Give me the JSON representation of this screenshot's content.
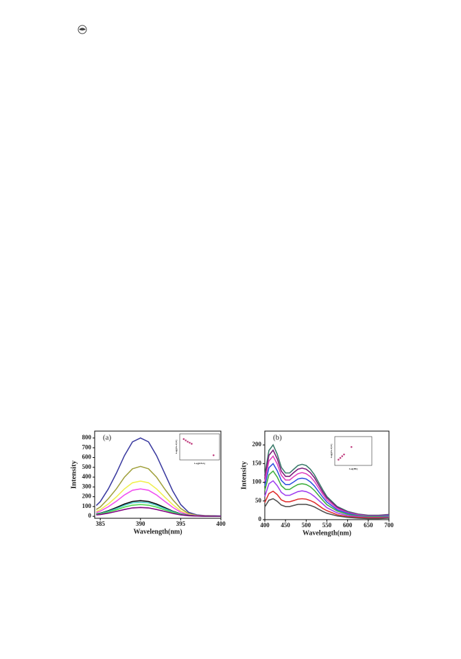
{
  "chart_data": [
    {
      "type": "line",
      "title": "(a)",
      "xlabel": "Wavelength(nm)",
      "ylabel": "Intensity",
      "x": [
        384.5,
        385,
        386,
        387,
        388,
        389,
        390,
        391,
        392,
        393,
        394,
        395,
        396,
        397,
        398,
        400
      ],
      "xlim": [
        384.3,
        400
      ],
      "ylim": [
        -20,
        870
      ],
      "xticks": [
        385,
        390,
        395,
        400
      ],
      "yticks": [
        0,
        100,
        200,
        300,
        400,
        500,
        600,
        700,
        800
      ],
      "series": [
        {
          "color": "#3c3ca0",
          "values": [
            110,
            150,
            280,
            440,
            620,
            760,
            800,
            760,
            620,
            440,
            260,
            120,
            40,
            15,
            8,
            3
          ]
        },
        {
          "color": "#a0a03c",
          "values": [
            70,
            95,
            180,
            280,
            400,
            485,
            510,
            485,
            400,
            280,
            170,
            80,
            28,
            10,
            5,
            2
          ]
        },
        {
          "color": "#f0f050",
          "values": [
            50,
            68,
            126,
            198,
            280,
            342,
            360,
            342,
            280,
            198,
            120,
            55,
            20,
            8,
            4,
            2
          ]
        },
        {
          "color": "#f050f0",
          "values": [
            40,
            53,
            98,
            154,
            218,
            266,
            280,
            266,
            218,
            154,
            92,
            42,
            15,
            6,
            3,
            1
          ]
        },
        {
          "color": "#000000",
          "values": [
            25,
            32,
            57,
            89,
            125,
            152,
            160,
            152,
            125,
            89,
            53,
            25,
            10,
            4,
            2,
            1
          ]
        },
        {
          "color": "#40c0c0",
          "values": [
            22,
            28,
            51,
            80,
            113,
            138,
            145,
            138,
            113,
            80,
            48,
            22,
            9,
            4,
            2,
            1
          ]
        },
        {
          "color": "#4ad84a",
          "values": [
            18,
            24,
            43,
            66,
            94,
            114,
            120,
            114,
            94,
            66,
            40,
            18,
            7,
            3,
            2,
            1
          ]
        },
        {
          "color": "#800080",
          "values": [
            14,
            18,
            32,
            50,
            70,
            86,
            90,
            86,
            70,
            50,
            30,
            14,
            6,
            3,
            2,
            1
          ]
        }
      ]
    },
    {
      "type": "scatter",
      "xlabel": "Log[DNA]",
      "ylabel": "Log[(Fo-F)/F]",
      "color": "#c04080",
      "x": [
        1,
        1.5,
        2,
        2.5,
        3,
        8.5
      ],
      "values": [
        8,
        7.5,
        7,
        6.6,
        6.2,
        1.8
      ],
      "xlim": [
        0,
        10
      ],
      "ylim": [
        0,
        10
      ]
    },
    {
      "type": "line",
      "title": "(b)",
      "xlabel": "Wavelength(nm)",
      "ylabel": "Intensity",
      "x": [
        400,
        410,
        420,
        430,
        440,
        450,
        460,
        470,
        480,
        490,
        500,
        510,
        520,
        530,
        540,
        550,
        575,
        600,
        625,
        650,
        675,
        700
      ],
      "xlim": [
        400,
        700
      ],
      "ylim": [
        0,
        237
      ],
      "xticks": [
        400,
        450,
        500,
        550,
        600,
        650,
        700
      ],
      "yticks": [
        0,
        50,
        100,
        150,
        200
      ],
      "series": [
        {
          "color": "#3a7a6a",
          "values": [
            120,
            185,
            200,
            175,
            140,
            125,
            125,
            135,
            145,
            148,
            145,
            135,
            120,
            100,
            80,
            62,
            35,
            22,
            15,
            12,
            12,
            14
          ]
        },
        {
          "color": "#7a1a7a",
          "values": [
            112,
            172,
            186,
            163,
            130,
            116,
            116,
            126,
            135,
            138,
            135,
            126,
            112,
            93,
            74,
            58,
            33,
            20,
            14,
            11,
            11,
            13
          ]
        },
        {
          "color": "#e040c0",
          "values": [
            102,
            157,
            170,
            149,
            119,
            106,
            106,
            115,
            123,
            126,
            123,
            115,
            102,
            85,
            68,
            53,
            30,
            19,
            13,
            10,
            10,
            12
          ]
        },
        {
          "color": "#3050e0",
          "values": [
            90,
            139,
            150,
            131,
            105,
            94,
            94,
            101,
            109,
            111,
            109,
            101,
            90,
            75,
            60,
            47,
            26,
            17,
            11,
            9,
            9,
            11
          ]
        },
        {
          "color": "#40b040",
          "values": [
            78,
            120,
            130,
            114,
            91,
            81,
            81,
            88,
            94,
            96,
            94,
            88,
            78,
            65,
            52,
            40,
            23,
            14,
            10,
            8,
            8,
            9
          ]
        },
        {
          "color": "#a040f0",
          "values": [
            62,
            96,
            104,
            91,
            73,
            65,
            65,
            70,
            75,
            77,
            75,
            70,
            62,
            52,
            42,
            32,
            18,
            11,
            8,
            6,
            6,
            7
          ]
        },
        {
          "color": "#e03030",
          "values": [
            46,
            70,
            76,
            67,
            53,
            48,
            48,
            51,
            55,
            56,
            55,
            51,
            46,
            38,
            30,
            24,
            13,
            8,
            6,
            5,
            5,
            5
          ]
        },
        {
          "color": "#505050",
          "values": [
            34,
            52,
            56,
            49,
            39,
            35,
            35,
            38,
            41,
            41,
            41,
            38,
            34,
            28,
            22,
            17,
            10,
            6,
            4,
            3,
            3,
            4
          ]
        }
      ]
    },
    {
      "type": "scatter",
      "xlabel": "Log[Hb]",
      "ylabel": "Log[(Fo-F)/F]",
      "color": "#c04080",
      "x": [
        1,
        1.5,
        2,
        2.5,
        4.5
      ],
      "values": [
        2,
        2.6,
        3.2,
        3.8,
        6.4
      ],
      "xlim": [
        0,
        10
      ],
      "ylim": [
        0,
        10
      ]
    }
  ]
}
